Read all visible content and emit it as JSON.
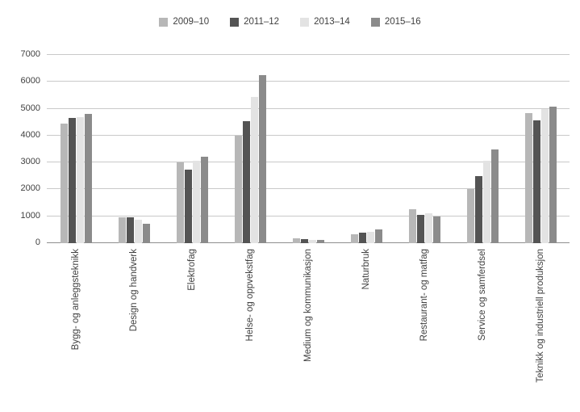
{
  "chart_data": {
    "type": "bar",
    "title": "",
    "xlabel": "",
    "ylabel": "",
    "categories": [
      "Bygg- og anleggsteknikk",
      "Design og handverk",
      "Elektrofag",
      "Helse- og oppvekstfag",
      "Medium og kommunikasjon",
      "Naturbruk",
      "Restaurant- og matfag",
      "Service og samferdsel",
      "Teknikk og industriell produksjon"
    ],
    "series": [
      {
        "name": "2009–10",
        "color": "#b7b7b7",
        "values": [
          4450,
          950,
          3000,
          4000,
          170,
          320,
          1250,
          2000,
          4850
        ]
      },
      {
        "name": "2011–12",
        "color": "#545454",
        "values": [
          4650,
          950,
          2730,
          4550,
          150,
          400,
          1050,
          2500,
          4580
        ]
      },
      {
        "name": "2013–14",
        "color": "#e3e3e3",
        "values": [
          4700,
          860,
          3050,
          5430,
          120,
          410,
          1100,
          3050,
          5000
        ]
      },
      {
        "name": "2015–16",
        "color": "#8b8b8b",
        "values": [
          4800,
          720,
          3220,
          6250,
          110,
          500,
          1000,
          3500,
          5070
        ]
      }
    ],
    "ylim": [
      0,
      7000
    ],
    "yticks": [
      0,
      1000,
      2000,
      3000,
      4000,
      5000,
      6000,
      7000
    ],
    "grid": "horizontal",
    "legend_position": "top"
  }
}
